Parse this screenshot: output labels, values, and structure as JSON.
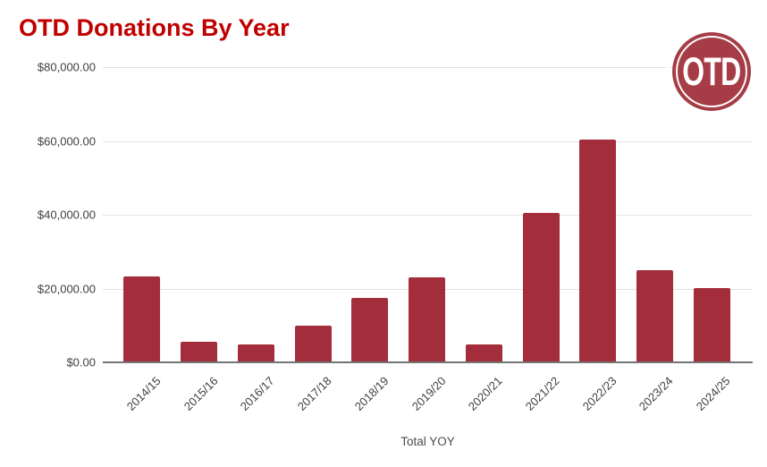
{
  "header": {
    "title": "OTD Donations By Year",
    "title_color": "#c00000"
  },
  "logo": {
    "text": "OTD",
    "open_paren": "(",
    "close_paren": ")",
    "circle_color": "#a63d46",
    "ring_color": "#ffffff",
    "text_color": "#ffffff"
  },
  "chart_data": {
    "type": "bar",
    "title": "OTD Donations By Year",
    "xlabel": "Total YOY",
    "ylabel": "",
    "categories": [
      "2014/15",
      "2015/16",
      "2016/17",
      "2017/18",
      "2018/19",
      "2019/20",
      "2020/21",
      "2021/22",
      "2022/23",
      "2023/24",
      "2024/25"
    ],
    "values": [
      23200,
      5600,
      4800,
      9900,
      17400,
      23100,
      4900,
      40500,
      60300,
      24900,
      20100
    ],
    "ylim": [
      0,
      80000
    ],
    "y_ticks": [
      {
        "value": 80000,
        "label": "$80,000.00"
      },
      {
        "value": 60000,
        "label": "$60,000.00"
      },
      {
        "value": 40000,
        "label": "$40,000.00"
      },
      {
        "value": 20000,
        "label": "$20,000.00"
      },
      {
        "value": 0,
        "label": "$0.00"
      }
    ],
    "grid": true,
    "legend_position": "none",
    "bar_color": "#a32d3a",
    "gridline_color": "#e2e2e2",
    "axis_line_color": "#747474",
    "tick_label_color": "#3f3f3f"
  }
}
